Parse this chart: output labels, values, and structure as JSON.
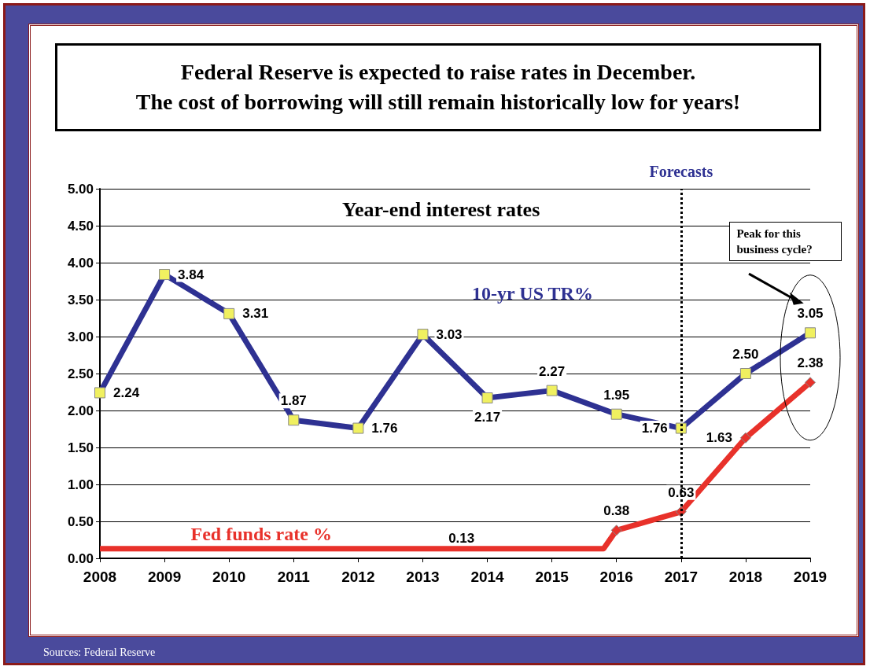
{
  "chart_data": {
    "type": "line",
    "title": "Federal Reserve is expected to raise rates in December.\nThe cost of borrowing will still remain historically low for years!",
    "subtitle": "Year-end interest rates",
    "xlim": [
      2008,
      2019
    ],
    "xticks": [
      2008,
      2009,
      2010,
      2011,
      2012,
      2013,
      2014,
      2015,
      2016,
      2017,
      2018,
      2019
    ],
    "ylim": [
      0,
      5
    ],
    "yticks": [
      {
        "value": 0,
        "label": "0.00"
      },
      {
        "value": 0.5,
        "label": "0.50"
      },
      {
        "value": 1,
        "label": "1.00"
      },
      {
        "value": 1.5,
        "label": "1.50"
      },
      {
        "value": 2,
        "label": "2.00"
      },
      {
        "value": 2.5,
        "label": "2.50"
      },
      {
        "value": 3,
        "label": "3.00"
      },
      {
        "value": 3.5,
        "label": "3.50"
      },
      {
        "value": 4,
        "label": "4.00"
      },
      {
        "value": 4.5,
        "label": "4.50"
      },
      {
        "value": 5,
        "label": "5.00"
      }
    ],
    "grid": "y",
    "legend": false,
    "series": [
      {
        "name": "10-yr US TR%",
        "color": "#2e3192",
        "marker": "square",
        "x": [
          2008,
          2009,
          2010,
          2011,
          2012,
          2013,
          2014,
          2015,
          2016,
          2017,
          2018,
          2019
        ],
        "values": [
          2.24,
          3.84,
          3.31,
          1.87,
          1.76,
          3.03,
          2.17,
          2.27,
          1.95,
          1.76,
          2.5,
          3.05
        ],
        "value_labels": [
          "2.24",
          "3.84",
          "3.31",
          "1.87",
          "1.76",
          "3.03",
          "2.17",
          "2.27",
          "1.95",
          "1.76",
          "2.50",
          "3.05"
        ]
      },
      {
        "name": "Fed funds rate %",
        "color": "#e8312a",
        "marker": "diamond",
        "x": [
          2008,
          2015.8,
          2016,
          2017,
          2018,
          2019
        ],
        "values": [
          0.13,
          0.13,
          0.38,
          0.63,
          1.63,
          2.38
        ],
        "value_labels": [
          null,
          null,
          "0.38",
          "0.63",
          "1.63",
          "2.38"
        ]
      }
    ],
    "ref_lines": [
      {
        "axis": "x",
        "value": 2017,
        "label": "Forecasts",
        "line_style": "dotted",
        "color": "#000000"
      }
    ],
    "annotations": [
      {
        "text": "0.13",
        "x": 2013.6,
        "y": 0.13
      },
      "Peak for this business cycle?",
      "Sources: Federal Reserve"
    ]
  }
}
